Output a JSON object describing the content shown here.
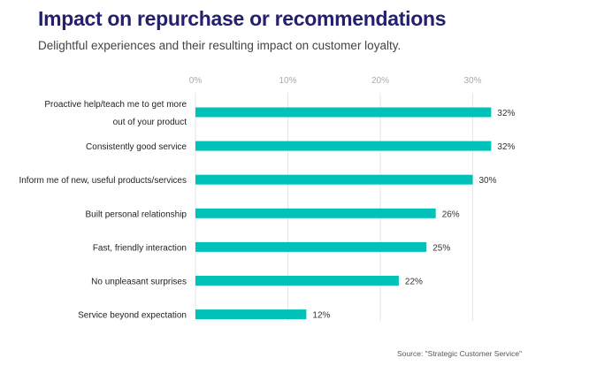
{
  "chart_data": {
    "type": "bar",
    "orientation": "horizontal",
    "title": "Impact on repurchase or recommendations",
    "subtitle": "Delightful experiences and their resulting impact on customer loyalty.",
    "categories": [
      [
        "Proactive help/teach me to get more",
        "out of your product"
      ],
      [
        "Consistently good service"
      ],
      [
        "Inform me of new, useful products/services"
      ],
      [
        "Built personal relationship"
      ],
      [
        "Fast, friendly interaction"
      ],
      [
        "No unpleasant surprises"
      ],
      [
        "Service beyond expectation"
      ]
    ],
    "values": [
      32,
      32,
      30,
      26,
      25,
      22,
      12
    ],
    "value_labels": [
      "32%",
      "32%",
      "30%",
      "26%",
      "25%",
      "22%",
      "12%"
    ],
    "xticks": [
      0,
      10,
      20,
      30
    ],
    "xtick_labels": [
      "0%",
      "10%",
      "20%",
      "30%"
    ],
    "xlim": [
      0,
      32
    ],
    "grid": true,
    "bar_color": "#00c2b8",
    "source": "Source: \"Strategic Customer Service\""
  }
}
